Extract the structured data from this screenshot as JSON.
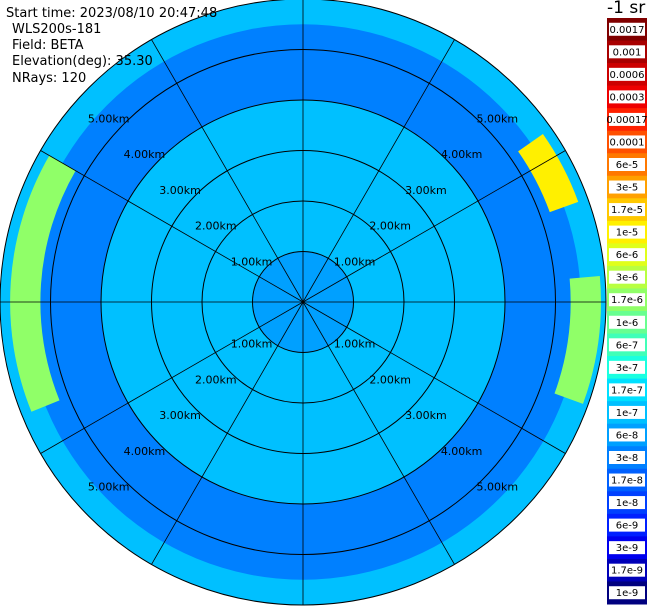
{
  "info": {
    "start_time": "Start time: 2023/08/10 20:47:48",
    "device": "WLS200s-181",
    "field": "Field: BETA",
    "elevation": "Elevation(deg): 35.30",
    "nrays": "NRays: 120"
  },
  "colorbar": {
    "unit_label": "-1 sr",
    "ticks": [
      "0.0017",
      "0.001",
      "0.0006",
      "0.0003",
      "0.00017",
      "0.0001",
      "6e-5",
      "3e-5",
      "1.7e-5",
      "1e-5",
      "6e-6",
      "3e-6",
      "1.7e-6",
      "1e-6",
      "6e-7",
      "3e-7",
      "1.7e-7",
      "1e-7",
      "6e-8",
      "3e-8",
      "1.7e-8",
      "1e-8",
      "6e-9",
      "3e-9",
      "1.7e-9",
      "1e-9"
    ],
    "colors": [
      "#800000",
      "#a80000",
      "#cc0000",
      "#ee0000",
      "#ff2000",
      "#ff5000",
      "#ff7800",
      "#ffa000",
      "#ffc800",
      "#fff000",
      "#e0ff1a",
      "#b8ff40",
      "#90ff68",
      "#68ff90",
      "#40ffb8",
      "#1affe0",
      "#00e0ff",
      "#00c0ff",
      "#00a0ff",
      "#0080ff",
      "#0060ff",
      "#0040ff",
      "#0020ff",
      "#0000ee",
      "#0000b8",
      "#00007f"
    ]
  },
  "chart_data": {
    "type": "heatmap",
    "projection": "polar (PPI scan)",
    "field": "BETA",
    "range_rings_km": [
      1,
      2,
      3,
      4,
      5
    ],
    "range_labels": [
      "1.00km",
      "2.00km",
      "3.00km",
      "4.00km",
      "5.00km"
    ],
    "max_range_km": 6.0,
    "spokes_deg": [
      0,
      30,
      60,
      90,
      120,
      150,
      180,
      210,
      240,
      270,
      300,
      330
    ],
    "nrays": 120,
    "features": [
      {
        "description_level": "background",
        "range_km": [
          1.0,
          6.0
        ],
        "azimuth_deg": [
          0,
          360
        ],
        "value": "1e-7"
      },
      {
        "description_level": "inner",
        "range_km": [
          0.0,
          1.0
        ],
        "azimuth_deg": [
          0,
          360
        ],
        "value": "6e-8"
      },
      {
        "range_km": [
          4.0,
          5.5
        ],
        "azimuth_deg": [
          0,
          360
        ],
        "value": "3e-8"
      },
      {
        "range_km": [
          5.2,
          5.8
        ],
        "azimuth_deg": [
          248,
          300
        ],
        "value": "1.7e-6"
      },
      {
        "range_km": [
          5.2,
          5.8
        ],
        "azimuth_deg": [
          55,
          70
        ],
        "value": "1e-5"
      },
      {
        "range_km": [
          5.3,
          5.9
        ],
        "azimuth_deg": [
          85,
          110
        ],
        "value": "1.7e-6"
      }
    ]
  }
}
